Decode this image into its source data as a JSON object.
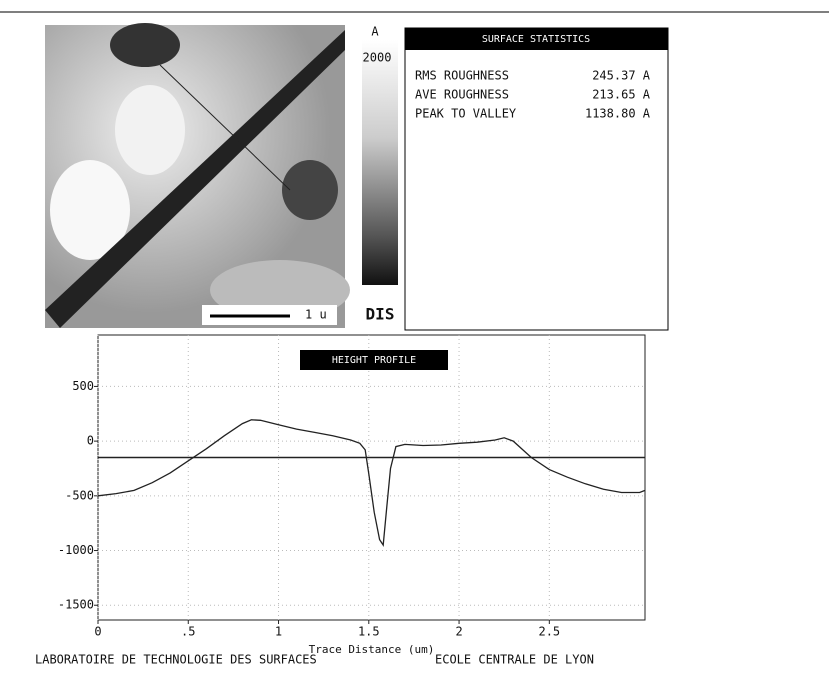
{
  "colorbar": {
    "unit": "A",
    "max_label": "2000"
  },
  "scale_bar": "1 u",
  "logo": "DIS",
  "stats": {
    "title": "SURFACE STATISTICS",
    "rows": [
      [
        "RMS ROUGHNESS",
        "245.37 A"
      ],
      [
        "AVE ROUGHNESS",
        "213.65 A"
      ],
      [
        "PEAK TO VALLEY",
        "1138.80 A"
      ]
    ]
  },
  "footer": [
    "LABORATOIRE DE TECHNOLOGIE DES SURFACES",
    "ECOLE CENTRALE DE LYON"
  ],
  "chart_data": {
    "type": "line",
    "title": "HEIGHT PROFILE",
    "x_label": "Trace Distance (um)",
    "x": [
      0,
      0.1,
      0.2,
      0.3,
      0.4,
      0.5,
      0.6,
      0.7,
      0.8,
      0.85,
      0.9,
      1.0,
      1.1,
      1.2,
      1.3,
      1.4,
      1.45,
      1.48,
      1.5,
      1.53,
      1.56,
      1.58,
      1.6,
      1.62,
      1.65,
      1.7,
      1.8,
      1.9,
      2.0,
      2.1,
      2.2,
      2.25,
      2.3,
      2.4,
      2.5,
      2.6,
      2.7,
      2.8,
      2.9,
      3.0,
      3.03
    ],
    "values": [
      -500,
      -480,
      -450,
      -380,
      -290,
      -180,
      -70,
      50,
      160,
      195,
      190,
      150,
      110,
      80,
      50,
      10,
      -20,
      -80,
      -300,
      -650,
      -900,
      -950,
      -600,
      -250,
      -50,
      -30,
      -40,
      -35,
      -20,
      -10,
      10,
      30,
      0,
      -150,
      -260,
      -330,
      -390,
      -440,
      -470,
      -470,
      -450
    ],
    "color": "#222",
    "reference_level": -150,
    "xlim": [
      0,
      3.03
    ],
    "ylim": [
      -1635,
      970
    ],
    "xticks": [
      0,
      {
        "value": 0.5,
        "label": ".5"
      },
      1,
      1.5,
      2,
      2.5
    ],
    "yticks": [
      500,
      0,
      -500,
      -1000,
      -1500
    ],
    "grid": true
  }
}
